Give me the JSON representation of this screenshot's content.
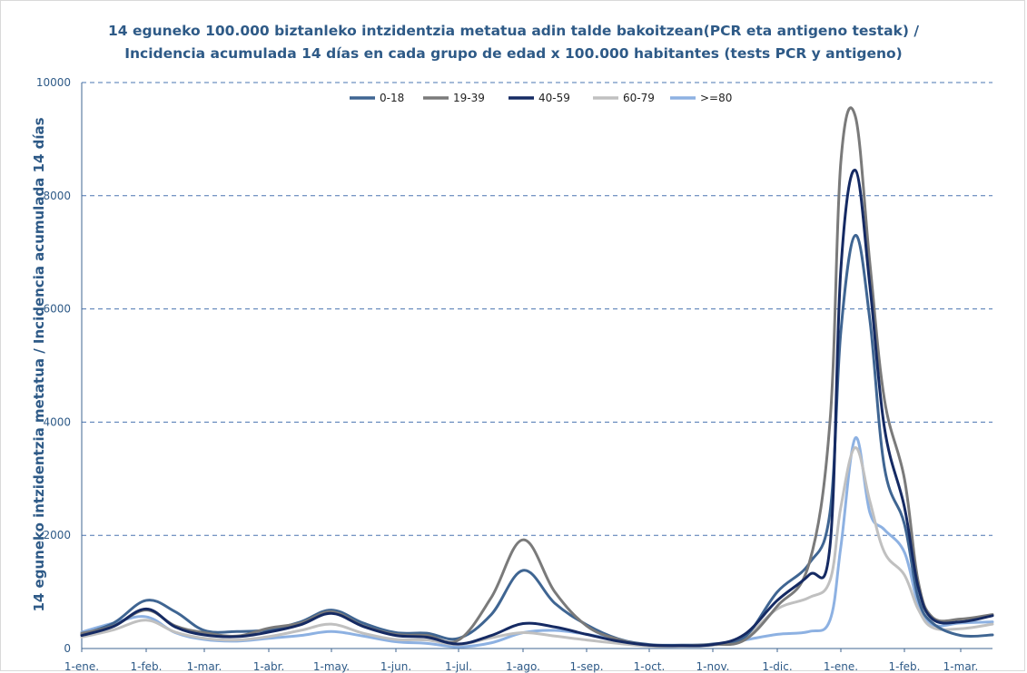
{
  "chart_data": {
    "type": "line",
    "title": "14 eguneko 100.000 biztanleko intzidentzia metatua adin talde bakoitzean(PCR eta antigeno testak) /",
    "subtitle": "Incidencia acumulada 14 días en cada grupo de edad x 100.000 habitantes (tests PCR y antigeno)",
    "xlabel": "",
    "ylabel": "14 eguneko intzidentzia metatua / Incidencia acumulada 14 días",
    "ylim": [
      0,
      10000
    ],
    "yticks": [
      "0",
      "2000",
      "4000",
      "6000",
      "8000",
      "10000"
    ],
    "x_tick_labels": [
      "1-ene.",
      "1-feb.",
      "1-mar.",
      "1-abr.",
      "1-may.",
      "1-jun.",
      "1-jul.",
      "1-ago.",
      "1-sep.",
      "1-oct.",
      "1-nov.",
      "1-dic.",
      "1-ene.",
      "1-feb.",
      "1-mar."
    ],
    "grid": "horizontal dashed",
    "legend_position": "top-center",
    "x": [
      "1-ene.",
      "15-ene.",
      "1-feb.",
      "15-feb.",
      "1-mar.",
      "15-mar.",
      "1-abr.",
      "15-abr.",
      "1-may.",
      "15-may.",
      "1-jun.",
      "15-jun.",
      "1-jul.",
      "15-jul.",
      "1-ago.",
      "15-ago.",
      "1-sep.",
      "15-sep.",
      "1-oct.",
      "15-oct.",
      "1-nov.",
      "15-nov.",
      "1-dic.",
      "15-dic.",
      "25-dic.",
      "1-ene.",
      "8-ene.",
      "15-ene.",
      "22-ene.",
      "1-feb.",
      "8-feb.",
      "15-feb.",
      "1-mar.",
      "10-mar."
    ],
    "series": [
      {
        "name": "0-18",
        "color": "#3f6592",
        "values": [
          250,
          450,
          850,
          650,
          320,
          300,
          330,
          470,
          680,
          450,
          280,
          270,
          180,
          600,
          1380,
          800,
          420,
          170,
          70,
          60,
          80,
          200,
          1000,
          1500,
          2400,
          5600,
          7300,
          5800,
          3200,
          2200,
          900,
          450,
          230,
          240
        ]
      },
      {
        "name": "19-39",
        "color": "#7a7a7a",
        "values": [
          270,
          400,
          680,
          400,
          280,
          220,
          360,
          450,
          650,
          400,
          250,
          230,
          150,
          900,
          1920,
          1000,
          400,
          160,
          60,
          50,
          70,
          150,
          750,
          1500,
          4000,
          8600,
          9400,
          6800,
          4400,
          3000,
          1200,
          550,
          520,
          600
        ]
      },
      {
        "name": "40-59",
        "color": "#152a63",
        "values": [
          230,
          390,
          700,
          380,
          240,
          210,
          290,
          420,
          620,
          390,
          230,
          200,
          80,
          230,
          440,
          380,
          250,
          130,
          60,
          50,
          70,
          250,
          850,
          1300,
          1800,
          6700,
          8450,
          6400,
          3900,
          2500,
          1100,
          520,
          470,
          580
        ]
      },
      {
        "name": "60-79",
        "color": "#c0c0c0",
        "values": [
          200,
          330,
          500,
          290,
          180,
          150,
          210,
          320,
          430,
          270,
          160,
          150,
          70,
          190,
          280,
          220,
          150,
          90,
          40,
          40,
          60,
          200,
          700,
          900,
          1200,
          2500,
          3550,
          2600,
          1700,
          1300,
          700,
          370,
          350,
          430
        ]
      },
      {
        "name": ">=80",
        "color": "#8db1e2",
        "values": [
          290,
          450,
          560,
          280,
          160,
          130,
          180,
          230,
          300,
          220,
          120,
          90,
          30,
          100,
          280,
          320,
          250,
          150,
          60,
          40,
          60,
          150,
          250,
          300,
          500,
          1800,
          3720,
          2400,
          2100,
          1700,
          800,
          420,
          450,
          470
        ]
      }
    ]
  }
}
